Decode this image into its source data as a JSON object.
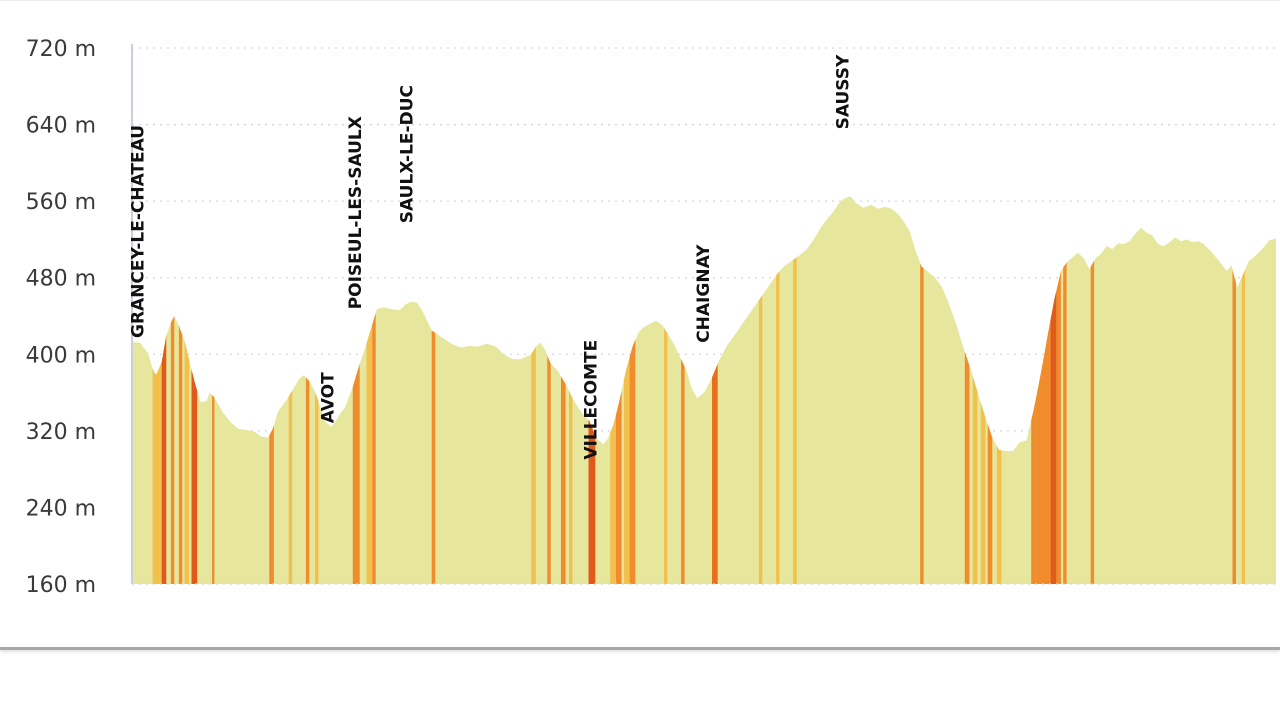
{
  "chart_data": {
    "type": "area",
    "title": "",
    "xlabel": "",
    "ylabel": "",
    "ylim": [
      160,
      720
    ],
    "yticks": [
      {
        "value": 720,
        "label": "720 m"
      },
      {
        "value": 640,
        "label": "640 m"
      },
      {
        "value": 560,
        "label": "560 m"
      },
      {
        "value": 480,
        "label": "480 m"
      },
      {
        "value": 400,
        "label": "400 m"
      },
      {
        "value": 320,
        "label": "320 m"
      },
      {
        "value": 240,
        "label": "240 m"
      },
      {
        "value": 160,
        "label": "160 m"
      }
    ],
    "grid": true,
    "x_range": [
      0,
      100
    ],
    "elevation": [
      [
        0,
        413
      ],
      [
        0.7,
        412
      ],
      [
        1.4,
        401
      ],
      [
        1.8,
        385
      ],
      [
        2.1,
        378
      ],
      [
        2.6,
        392
      ],
      [
        3.0,
        420
      ],
      [
        3.4,
        433
      ],
      [
        3.7,
        440
      ],
      [
        4.1,
        430
      ],
      [
        4.6,
        414
      ],
      [
        5.0,
        394
      ],
      [
        5.5,
        370
      ],
      [
        6.0,
        350
      ],
      [
        6.5,
        351
      ],
      [
        6.8,
        360
      ],
      [
        7.2,
        355
      ],
      [
        7.9,
        340
      ],
      [
        8.6,
        329
      ],
      [
        9.3,
        322
      ],
      [
        10.0,
        321
      ],
      [
        10.7,
        319
      ],
      [
        11.3,
        314
      ],
      [
        11.9,
        313
      ],
      [
        12.3,
        322
      ],
      [
        12.8,
        341
      ],
      [
        13.5,
        352
      ],
      [
        14.1,
        364
      ],
      [
        14.6,
        374
      ],
      [
        15.0,
        378
      ],
      [
        15.5,
        372
      ],
      [
        16.0,
        361
      ],
      [
        16.4,
        347
      ],
      [
        16.8,
        331
      ],
      [
        17.4,
        324
      ],
      [
        17.8,
        330
      ],
      [
        18.2,
        338
      ],
      [
        18.6,
        344
      ],
      [
        19.3,
        366
      ],
      [
        19.9,
        390
      ],
      [
        20.5,
        411
      ],
      [
        21.0,
        431
      ],
      [
        21.4,
        447
      ],
      [
        22.0,
        449
      ],
      [
        22.7,
        447
      ],
      [
        23.4,
        446
      ],
      [
        23.9,
        452
      ],
      [
        24.4,
        455
      ],
      [
        24.9,
        454
      ],
      [
        25.4,
        445
      ],
      [
        26.2,
        425
      ],
      [
        26.8,
        420
      ],
      [
        27.4,
        415
      ],
      [
        28.1,
        410
      ],
      [
        28.8,
        407
      ],
      [
        29.5,
        409
      ],
      [
        30.2,
        408
      ],
      [
        31.0,
        411
      ],
      [
        31.8,
        408
      ],
      [
        32.6,
        399
      ],
      [
        33.3,
        395
      ],
      [
        34.0,
        395
      ],
      [
        34.9,
        400
      ],
      [
        35.3,
        408
      ],
      [
        35.7,
        412
      ],
      [
        36.1,
        405
      ],
      [
        36.6,
        390
      ],
      [
        37.2,
        383
      ],
      [
        37.9,
        369
      ],
      [
        38.6,
        352
      ],
      [
        39.3,
        339
      ],
      [
        40.0,
        330
      ],
      [
        40.6,
        312
      ],
      [
        41.2,
        306
      ],
      [
        41.6,
        312
      ],
      [
        42.1,
        327
      ],
      [
        42.6,
        351
      ],
      [
        43.2,
        384
      ],
      [
        43.8,
        410
      ],
      [
        44.3,
        423
      ],
      [
        44.7,
        428
      ],
      [
        45.3,
        432
      ],
      [
        45.8,
        435
      ],
      [
        46.3,
        431
      ],
      [
        46.8,
        422
      ],
      [
        47.4,
        410
      ],
      [
        48.0,
        395
      ],
      [
        48.5,
        382
      ],
      [
        48.9,
        365
      ],
      [
        49.4,
        354
      ],
      [
        50.0,
        360
      ],
      [
        50.6,
        373
      ],
      [
        51.3,
        393
      ],
      [
        52.0,
        409
      ],
      [
        52.8,
        422
      ],
      [
        53.6,
        436
      ],
      [
        54.3,
        448
      ],
      [
        55.0,
        460
      ],
      [
        55.7,
        472
      ],
      [
        56.4,
        484
      ],
      [
        57.0,
        492
      ],
      [
        57.6,
        497
      ],
      [
        58.3,
        503
      ],
      [
        59.0,
        510
      ],
      [
        59.6,
        520
      ],
      [
        60.2,
        532
      ],
      [
        60.8,
        542
      ],
      [
        61.3,
        549
      ],
      [
        61.8,
        558
      ],
      [
        62.3,
        563
      ],
      [
        62.8,
        565
      ],
      [
        63.3,
        558
      ],
      [
        63.9,
        553
      ],
      [
        64.6,
        556
      ],
      [
        65.2,
        552
      ],
      [
        65.8,
        554
      ],
      [
        66.4,
        552
      ],
      [
        67.0,
        546
      ],
      [
        67.5,
        538
      ],
      [
        68.0,
        528
      ],
      [
        68.5,
        508
      ],
      [
        69.0,
        492
      ],
      [
        69.6,
        486
      ],
      [
        70.2,
        480
      ],
      [
        70.8,
        470
      ],
      [
        71.4,
        453
      ],
      [
        72.0,
        433
      ],
      [
        72.7,
        406
      ],
      [
        73.4,
        381
      ],
      [
        74.0,
        357
      ],
      [
        74.6,
        334
      ],
      [
        75.2,
        313
      ],
      [
        75.8,
        300
      ],
      [
        76.4,
        299
      ],
      [
        77.0,
        299
      ],
      [
        77.6,
        308
      ],
      [
        78.2,
        310
      ],
      [
        78.8,
        341
      ],
      [
        79.4,
        377
      ],
      [
        80.0,
        417
      ],
      [
        80.6,
        456
      ],
      [
        81.2,
        487
      ],
      [
        81.7,
        496
      ],
      [
        82.2,
        501
      ],
      [
        82.7,
        506
      ],
      [
        83.2,
        500
      ],
      [
        83.7,
        489
      ],
      [
        84.2,
        500
      ],
      [
        84.7,
        505
      ],
      [
        85.2,
        513
      ],
      [
        85.7,
        510
      ],
      [
        86.2,
        516
      ],
      [
        86.7,
        515
      ],
      [
        87.2,
        518
      ],
      [
        87.7,
        526
      ],
      [
        88.2,
        532
      ],
      [
        88.7,
        527
      ],
      [
        89.2,
        524
      ],
      [
        89.7,
        515
      ],
      [
        90.2,
        513
      ],
      [
        90.7,
        517
      ],
      [
        91.2,
        522
      ],
      [
        91.7,
        518
      ],
      [
        92.2,
        520
      ],
      [
        92.7,
        517
      ],
      [
        93.2,
        518
      ],
      [
        93.7,
        515
      ],
      [
        94.2,
        509
      ],
      [
        94.7,
        502
      ],
      [
        95.2,
        495
      ],
      [
        95.7,
        487
      ],
      [
        96.1,
        493
      ],
      [
        96.6,
        470
      ],
      [
        97.0,
        480
      ],
      [
        97.6,
        497
      ],
      [
        98.2,
        503
      ],
      [
        98.8,
        510
      ],
      [
        99.4,
        519
      ],
      [
        100,
        521
      ]
    ],
    "gradient_bands": [
      {
        "x": [
          1.8,
          2.6
        ],
        "color": "#f2c04c"
      },
      {
        "x": [
          2.6,
          3.0
        ],
        "color": "#e05a1c"
      },
      {
        "x": [
          3.4,
          3.7
        ],
        "color": "#f08c2c"
      },
      {
        "x": [
          4.1,
          4.4
        ],
        "color": "#f08c2c"
      },
      {
        "x": [
          4.6,
          5.0
        ],
        "color": "#f2c04c"
      },
      {
        "x": [
          5.2,
          5.7
        ],
        "color": "#e05a1c"
      },
      {
        "x": [
          7.0,
          7.2
        ],
        "color": "#f08c2c"
      },
      {
        "x": [
          12.0,
          12.4
        ],
        "color": "#f08c2c"
      },
      {
        "x": [
          13.7,
          14.0
        ],
        "color": "#f2c04c"
      },
      {
        "x": [
          15.2,
          15.5
        ],
        "color": "#f08c2c"
      },
      {
        "x": [
          16.0,
          16.3
        ],
        "color": "#f2c04c"
      },
      {
        "x": [
          19.3,
          19.9
        ],
        "color": "#f08c2c"
      },
      {
        "x": [
          20.5,
          21.0
        ],
        "color": "#f2c04c"
      },
      {
        "x": [
          21.0,
          21.3
        ],
        "color": "#f08c2c"
      },
      {
        "x": [
          26.2,
          26.5
        ],
        "color": "#f08c2c"
      },
      {
        "x": [
          34.9,
          35.3
        ],
        "color": "#f2c04c"
      },
      {
        "x": [
          36.3,
          36.6
        ],
        "color": "#f08c2c"
      },
      {
        "x": [
          37.5,
          37.9
        ],
        "color": "#f08c2c"
      },
      {
        "x": [
          38.2,
          38.5
        ],
        "color": "#f2c04c"
      },
      {
        "x": [
          39.9,
          40.5
        ],
        "color": "#e05a1c"
      },
      {
        "x": [
          41.8,
          42.3
        ],
        "color": "#f2c04c"
      },
      {
        "x": [
          42.3,
          42.8
        ],
        "color": "#f08c2c"
      },
      {
        "x": [
          43.0,
          43.5
        ],
        "color": "#f2c04c"
      },
      {
        "x": [
          43.5,
          44.0
        ],
        "color": "#f08c2c"
      },
      {
        "x": [
          46.5,
          46.8
        ],
        "color": "#f2c04c"
      },
      {
        "x": [
          48.0,
          48.3
        ],
        "color": "#f08c2c"
      },
      {
        "x": [
          50.7,
          51.2
        ],
        "color": "#e8701c"
      },
      {
        "x": [
          54.8,
          55.1
        ],
        "color": "#f2c04c"
      },
      {
        "x": [
          56.3,
          56.6
        ],
        "color": "#f2c04c"
      },
      {
        "x": [
          57.8,
          58.1
        ],
        "color": "#f2c04c"
      },
      {
        "x": [
          68.9,
          69.2
        ],
        "color": "#f08c2c"
      },
      {
        "x": [
          72.8,
          73.2
        ],
        "color": "#f08c2c"
      },
      {
        "x": [
          73.5,
          73.9
        ],
        "color": "#f2c04c"
      },
      {
        "x": [
          74.2,
          74.6
        ],
        "color": "#f2c04c"
      },
      {
        "x": [
          74.8,
          75.2
        ],
        "color": "#f08c2c"
      },
      {
        "x": [
          75.6,
          76.0
        ],
        "color": "#f2c04c"
      },
      {
        "x": [
          78.6,
          79.1
        ],
        "color": "#f08c2c"
      },
      {
        "x": [
          79.1,
          80.3
        ],
        "color": "#f08c2c"
      },
      {
        "x": [
          80.3,
          80.8
        ],
        "color": "#e05a1c"
      },
      {
        "x": [
          80.8,
          81.2
        ],
        "color": "#f08c2c"
      },
      {
        "x": [
          81.4,
          81.7
        ],
        "color": "#f08c2c"
      },
      {
        "x": [
          83.8,
          84.1
        ],
        "color": "#f08c2c"
      },
      {
        "x": [
          96.2,
          96.5
        ],
        "color": "#f08c2c"
      },
      {
        "x": [
          97.0,
          97.3
        ],
        "color": "#f2c04c"
      }
    ],
    "area_color": "#e6e69c",
    "annotations": [
      {
        "text": "GRANCEY-LE-CHATEAU",
        "x": 0.5,
        "anchor_elev": 417
      },
      {
        "text": "AVOT",
        "x": 17.1,
        "anchor_elev": 328
      },
      {
        "text": "POISEUL-LES-SAULX",
        "x": 19.5,
        "anchor_elev": 447
      },
      {
        "text": "SAULX-LE-DUC",
        "x": 24.0,
        "anchor_elev": 537
      },
      {
        "text": "VILLECOMTE",
        "x": 40.1,
        "anchor_elev": 290
      },
      {
        "text": "CHAIGNAY",
        "x": 49.9,
        "anchor_elev": 412
      },
      {
        "text": "SAUSSY",
        "x": 62.1,
        "anchor_elev": 635
      }
    ]
  }
}
